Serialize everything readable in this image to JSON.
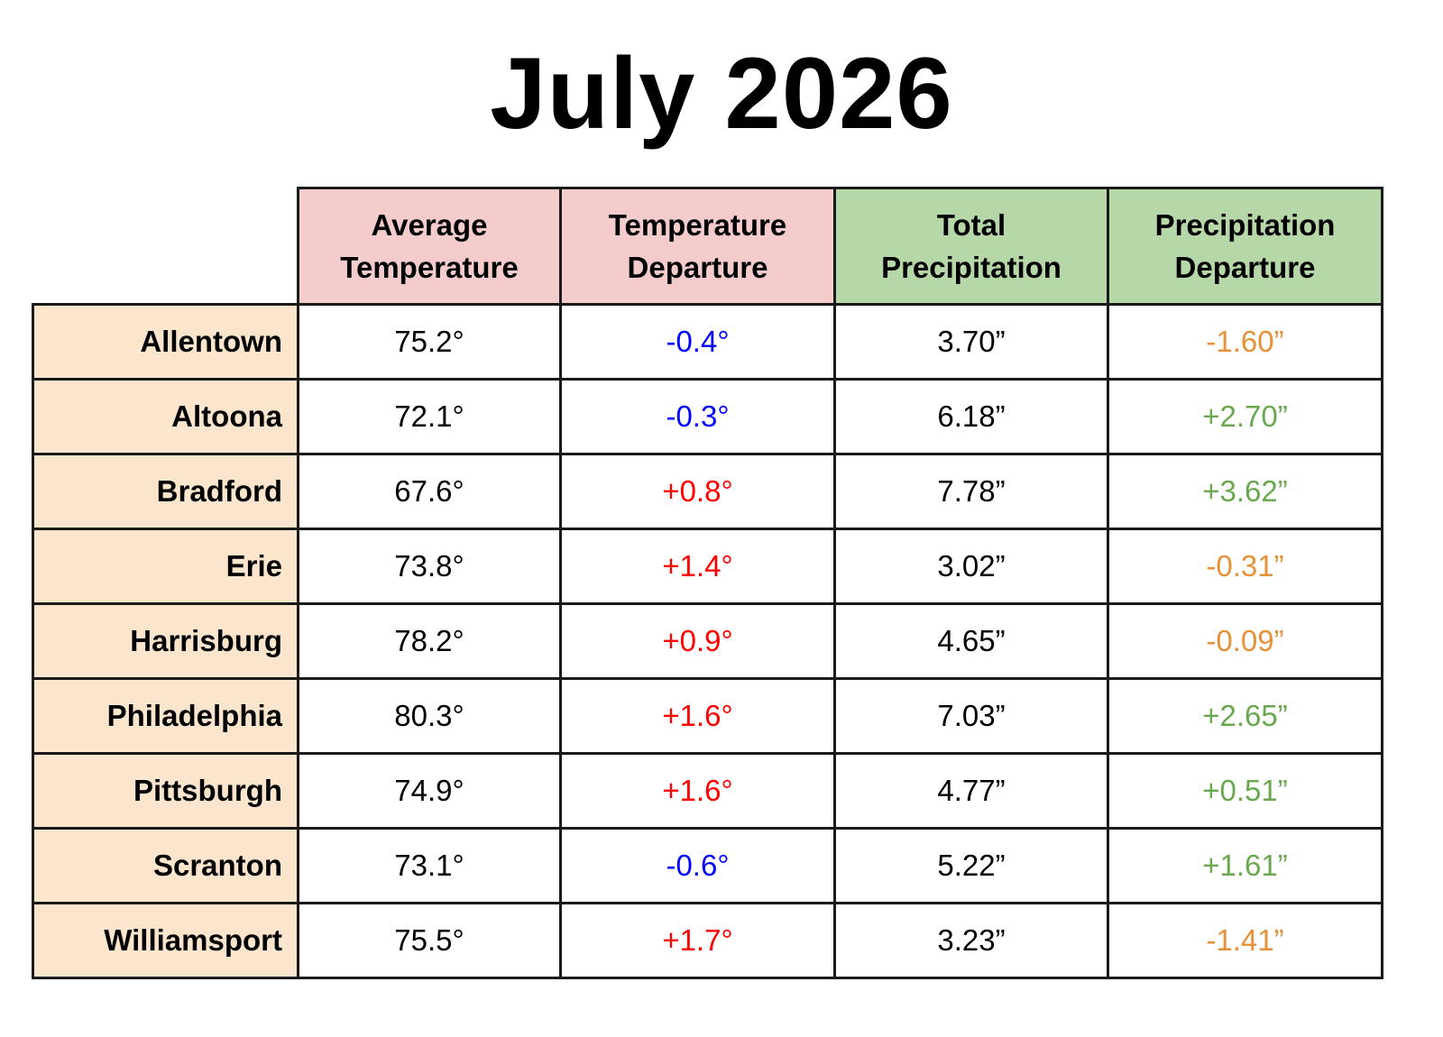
{
  "title": "July 2026",
  "colors": {
    "temp_header_bg": "#f4cccc",
    "precip_header_bg": "#b6d7a8",
    "city_bg": "#fce5cd",
    "temp_departure_negative": "#0000ff",
    "temp_departure_positive": "#ff0000",
    "precip_departure_negative": "#e69138",
    "precip_departure_positive": "#6aa84f"
  },
  "table": {
    "headers": [
      {
        "line1": "Average",
        "line2": "Temperature"
      },
      {
        "line1": "Temperature",
        "line2": "Departure"
      },
      {
        "line1": "Total",
        "line2": "Precipitation"
      },
      {
        "line1": "Precipitation",
        "line2": "Departure"
      }
    ],
    "rows": [
      {
        "city": "Allentown",
        "avg_temp": "75.2°",
        "temp_dep": "-0.4°",
        "total_precip": "3.70”",
        "precip_dep": "-1.60”"
      },
      {
        "city": "Altoona",
        "avg_temp": "72.1°",
        "temp_dep": "-0.3°",
        "total_precip": "6.18”",
        "precip_dep": "+2.70”"
      },
      {
        "city": "Bradford",
        "avg_temp": "67.6°",
        "temp_dep": "+0.8°",
        "total_precip": "7.78”",
        "precip_dep": "+3.62”"
      },
      {
        "city": "Erie",
        "avg_temp": "73.8°",
        "temp_dep": "+1.4°",
        "total_precip": "3.02”",
        "precip_dep": "-0.31”"
      },
      {
        "city": "Harrisburg",
        "avg_temp": "78.2°",
        "temp_dep": "+0.9°",
        "total_precip": "4.65”",
        "precip_dep": "-0.09”"
      },
      {
        "city": "Philadelphia",
        "avg_temp": "80.3°",
        "temp_dep": "+1.6°",
        "total_precip": "7.03”",
        "precip_dep": "+2.65”"
      },
      {
        "city": "Pittsburgh",
        "avg_temp": "74.9°",
        "temp_dep": "+1.6°",
        "total_precip": "4.77”",
        "precip_dep": "+0.51”"
      },
      {
        "city": "Scranton",
        "avg_temp": "73.1°",
        "temp_dep": "-0.6°",
        "total_precip": "5.22”",
        "precip_dep": "+1.61”"
      },
      {
        "city": "Williamsport",
        "avg_temp": "75.5°",
        "temp_dep": "+1.7°",
        "total_precip": "3.23”",
        "precip_dep": "-1.41”"
      }
    ]
  }
}
